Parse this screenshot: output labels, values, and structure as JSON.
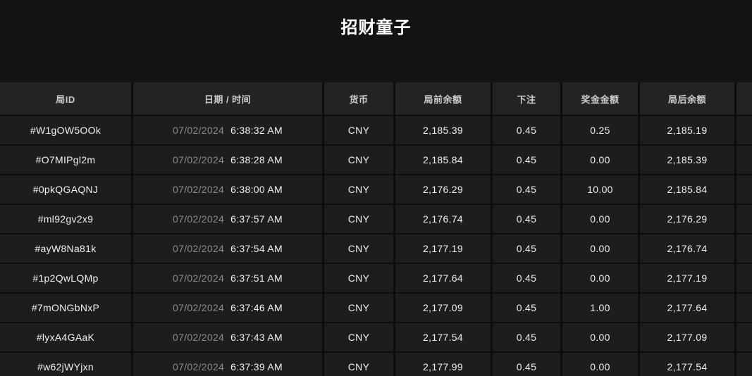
{
  "title": "招财童子",
  "colors": {
    "page_background": "#131313",
    "header_row_background": "#232323",
    "data_row_background": "#1d1d1d",
    "separator": "#0d0d0d",
    "header_text": "#cccccc",
    "primary_text": "#f1f1f1",
    "date_text": "#8a8a8a",
    "title_text": "#ffffff"
  },
  "table": {
    "columns": [
      {
        "key": "id",
        "label": "局ID"
      },
      {
        "key": "datetime",
        "label": "日期 / 时间"
      },
      {
        "key": "currency",
        "label": "货币"
      },
      {
        "key": "balance_before",
        "label": "局前余额"
      },
      {
        "key": "bet",
        "label": "下注"
      },
      {
        "key": "prize",
        "label": "奖金金额"
      },
      {
        "key": "balance_after",
        "label": "局后余额"
      }
    ],
    "rows": [
      {
        "id": "#W1gOW5OOk",
        "date": "07/02/2024",
        "time": "6:38:32 AM",
        "currency": "CNY",
        "balance_before": "2,185.39",
        "bet": "0.45",
        "prize": "0.25",
        "balance_after": "2,185.19"
      },
      {
        "id": "#O7MIPgl2m",
        "date": "07/02/2024",
        "time": "6:38:28 AM",
        "currency": "CNY",
        "balance_before": "2,185.84",
        "bet": "0.45",
        "prize": "0.00",
        "balance_after": "2,185.39"
      },
      {
        "id": "#0pkQGAQNJ",
        "date": "07/02/2024",
        "time": "6:38:00 AM",
        "currency": "CNY",
        "balance_before": "2,176.29",
        "bet": "0.45",
        "prize": "10.00",
        "balance_after": "2,185.84"
      },
      {
        "id": "#ml92gv2x9",
        "date": "07/02/2024",
        "time": "6:37:57 AM",
        "currency": "CNY",
        "balance_before": "2,176.74",
        "bet": "0.45",
        "prize": "0.00",
        "balance_after": "2,176.29"
      },
      {
        "id": "#ayW8Na81k",
        "date": "07/02/2024",
        "time": "6:37:54 AM",
        "currency": "CNY",
        "balance_before": "2,177.19",
        "bet": "0.45",
        "prize": "0.00",
        "balance_after": "2,176.74"
      },
      {
        "id": "#1p2QwLQMp",
        "date": "07/02/2024",
        "time": "6:37:51 AM",
        "currency": "CNY",
        "balance_before": "2,177.64",
        "bet": "0.45",
        "prize": "0.00",
        "balance_after": "2,177.19"
      },
      {
        "id": "#7mONGbNxP",
        "date": "07/02/2024",
        "time": "6:37:46 AM",
        "currency": "CNY",
        "balance_before": "2,177.09",
        "bet": "0.45",
        "prize": "1.00",
        "balance_after": "2,177.64"
      },
      {
        "id": "#lyxA4GAaK",
        "date": "07/02/2024",
        "time": "6:37:43 AM",
        "currency": "CNY",
        "balance_before": "2,177.54",
        "bet": "0.45",
        "prize": "0.00",
        "balance_after": "2,177.09"
      },
      {
        "id": "#w62jWYjxn",
        "date": "07/02/2024",
        "time": "6:37:39 AM",
        "currency": "CNY",
        "balance_before": "2,177.99",
        "bet": "0.45",
        "prize": "0.00",
        "balance_after": "2,177.54"
      }
    ]
  }
}
